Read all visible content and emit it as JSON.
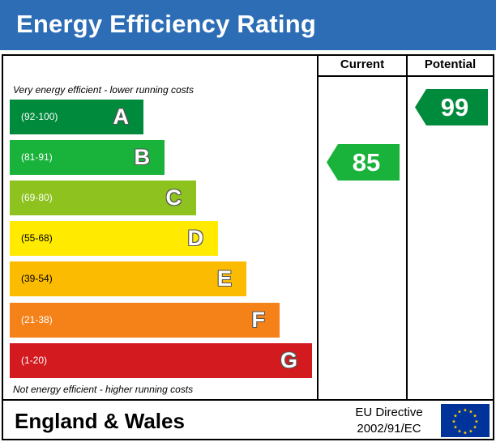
{
  "header": {
    "title": "Energy Efficiency Rating"
  },
  "columns": {
    "current": "Current",
    "potential": "Potential"
  },
  "notes": {
    "top": "Very energy efficient - lower running costs",
    "bottom": "Not energy efficient - higher running costs"
  },
  "bands": [
    {
      "letter": "A",
      "range": "(92-100)",
      "color": "#008a3c"
    },
    {
      "letter": "B",
      "range": "(81-91)",
      "color": "#19b33b"
    },
    {
      "letter": "C",
      "range": "(69-80)",
      "color": "#8dc21f"
    },
    {
      "letter": "D",
      "range": "(55-68)",
      "color": "#ffea00"
    },
    {
      "letter": "E",
      "range": "(39-54)",
      "color": "#fbbb00"
    },
    {
      "letter": "F",
      "range": "(21-38)",
      "color": "#f58219"
    },
    {
      "letter": "G",
      "range": "(1-20)",
      "color": "#d21a1f"
    }
  ],
  "ratings": {
    "current": {
      "value": "85",
      "band": "B",
      "color": "#19b33b"
    },
    "potential": {
      "value": "99",
      "band": "A",
      "color": "#008a3c"
    }
  },
  "footer": {
    "region": "England & Wales",
    "directive_line1": "EU Directive",
    "directive_line2": "2002/91/EC",
    "flag_icon": "eu-flag-icon",
    "flag_color": "#003399",
    "star_color": "#ffcc00"
  }
}
